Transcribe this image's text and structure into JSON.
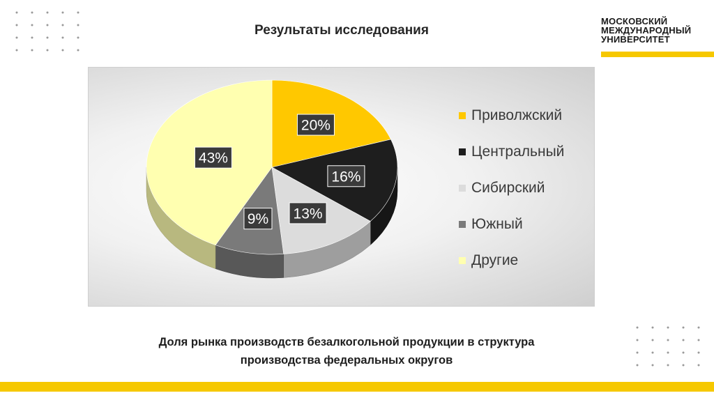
{
  "slide": {
    "title": "Результаты исследования",
    "logo_lines": [
      "МОСКОВСКИЙ",
      "МЕЖДУНАРОДНЫЙ",
      "УНИВЕРСИТЕТ"
    ],
    "caption_lines": [
      "Доля рынка производств безалкогольной продукции в структура",
      "производства федеральных округов"
    ],
    "accent_color": "#f6c800"
  },
  "chart_data": {
    "type": "pie",
    "title": "",
    "categories": [
      "Приволжский",
      "Центральный",
      "Сибирский",
      "Южный",
      "Другие"
    ],
    "values": [
      20,
      16,
      13,
      9,
      43
    ],
    "labels": [
      "20%",
      "16%",
      "13%",
      "9%",
      "43%"
    ],
    "colors": [
      "#ffc800",
      "#1e1e1e",
      "#dcdcdc",
      "#7a7a7a",
      "#ffffb0"
    ],
    "legend_position": "right",
    "style": "3d"
  }
}
